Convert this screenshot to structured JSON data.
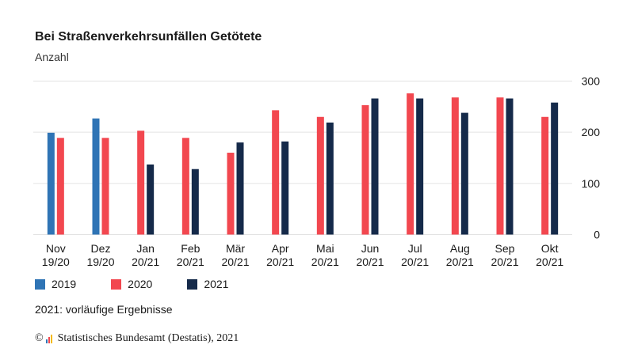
{
  "title": "Bei Straßenverkehrsunfällen Getötete",
  "subtitle": "Anzahl",
  "footnote": "2021: vorläufige Ergebnisse",
  "source": {
    "copyright_symbol": "©",
    "text": "Statistisches Bundesamt (Destatis), 2021"
  },
  "colors": {
    "2019": "#2f74b5",
    "2020": "#f2474f",
    "2021": "#152a4a",
    "grid": "#e3e3e3",
    "axis_text": "#1a1a1a"
  },
  "chart_data": {
    "type": "bar",
    "categories": [
      [
        "Nov",
        "19/20"
      ],
      [
        "Dez",
        "19/20"
      ],
      [
        "Jan",
        "20/21"
      ],
      [
        "Feb",
        "20/21"
      ],
      [
        "Mär",
        "20/21"
      ],
      [
        "Apr",
        "20/21"
      ],
      [
        "Mai",
        "20/21"
      ],
      [
        "Jun",
        "20/21"
      ],
      [
        "Jul",
        "20/21"
      ],
      [
        "Aug",
        "20/21"
      ],
      [
        "Sep",
        "20/21"
      ],
      [
        "Okt",
        "20/21"
      ]
    ],
    "series": [
      {
        "name": "2019",
        "values": [
          199,
          227,
          null,
          null,
          null,
          null,
          null,
          null,
          null,
          null,
          null,
          null
        ]
      },
      {
        "name": "2020",
        "values": [
          189,
          189,
          203,
          189,
          160,
          243,
          230,
          253,
          276,
          268,
          268,
          230
        ]
      },
      {
        "name": "2021",
        "values": [
          null,
          null,
          137,
          128,
          180,
          182,
          219,
          266,
          266,
          238,
          266,
          258
        ]
      }
    ],
    "yticks": [
      0,
      100,
      200,
      300
    ],
    "ylim": [
      0,
      300
    ],
    "grid": true,
    "y_axis_side": "right",
    "legend_position": "bottom-left"
  }
}
